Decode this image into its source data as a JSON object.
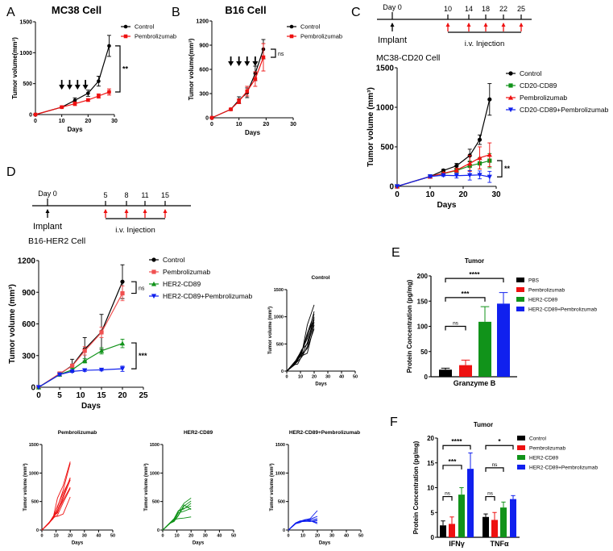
{
  "panels": {
    "A": "A",
    "B": "B",
    "C": "C",
    "D": "D",
    "E": "E",
    "F": "F"
  },
  "timelines": {
    "C": {
      "day0": "Day 0",
      "days": [
        "10",
        "14",
        "18",
        "22",
        "25"
      ],
      "implant": "Implant",
      "injection": "i.v.  Injection",
      "cell": "MC38-CD20 Cell"
    },
    "D": {
      "day0": "Day 0",
      "days": [
        "5",
        "8",
        "11",
        "15"
      ],
      "implant": "Implant",
      "injection": "i.v.  Injection",
      "cell": "B16-HER2  Cell"
    }
  },
  "chart_data": [
    {
      "id": "A",
      "type": "line",
      "title": "MC38 Cell",
      "xlabel": "Days",
      "ylabel": "Tumor volume(mm³)",
      "xlim": [
        0,
        30
      ],
      "ylim": [
        0,
        1500
      ],
      "xticks": [
        "0",
        "10",
        "20",
        "30"
      ],
      "yticks": [
        "0",
        "500",
        "1000",
        "1500"
      ],
      "series": [
        {
          "name": "Control",
          "color": "#000000",
          "marker": "circle",
          "x": [
            0,
            10,
            15,
            20,
            24,
            28
          ],
          "y": [
            0,
            120,
            230,
            345,
            540,
            1110
          ],
          "err": [
            0,
            10,
            40,
            50,
            80,
            170
          ]
        },
        {
          "name": "Pembrolizumab",
          "color": "#ee1111",
          "marker": "square",
          "x": [
            0,
            10,
            15,
            20,
            24,
            28
          ],
          "y": [
            0,
            120,
            175,
            235,
            300,
            365
          ],
          "err": [
            0,
            10,
            30,
            20,
            35,
            50
          ]
        }
      ],
      "treatment_days": [
        10,
        13,
        16,
        19
      ],
      "brackets": [
        {
          "label": "**",
          "from": 1110,
          "to": 365
        }
      ]
    },
    {
      "id": "B",
      "type": "line",
      "title": "B16 Cell",
      "xlabel": "Days",
      "ylabel": "Tumor volume(mm³)",
      "xlim": [
        0,
        30
      ],
      "ylim": [
        0,
        1200
      ],
      "xticks": [
        "0",
        "10",
        "20",
        "30"
      ],
      "yticks": [
        "0",
        "300",
        "600",
        "900",
        "1200"
      ],
      "series": [
        {
          "name": "Control",
          "color": "#000000",
          "marker": "circle",
          "x": [
            0,
            7,
            10,
            13,
            16,
            19
          ],
          "y": [
            0,
            105,
            220,
            310,
            550,
            850
          ],
          "err": [
            0,
            10,
            40,
            60,
            90,
            120
          ]
        },
        {
          "name": "Pembrolizumab",
          "color": "#ee1111",
          "marker": "square",
          "x": [
            0,
            7,
            10,
            13,
            16,
            19
          ],
          "y": [
            0,
            105,
            205,
            330,
            480,
            750
          ],
          "err": [
            0,
            10,
            30,
            60,
            90,
            170
          ]
        }
      ],
      "treatment_days": [
        7,
        10,
        13,
        16
      ],
      "brackets": [
        {
          "label": "ns",
          "from": 850,
          "to": 750
        }
      ]
    },
    {
      "id": "C",
      "type": "line",
      "title": "",
      "xlabel": "Days",
      "ylabel": "Tumor volume (mm³)",
      "xlim": [
        0,
        30
      ],
      "ylim": [
        0,
        1500
      ],
      "xticks": [
        "0",
        "10",
        "20",
        "30"
      ],
      "yticks": [
        "0",
        "500",
        "1000",
        "1500"
      ],
      "series": [
        {
          "name": "Control",
          "color": "#000000",
          "marker": "circle",
          "x": [
            0,
            10,
            14,
            18,
            22,
            25,
            28
          ],
          "y": [
            0,
            125,
            200,
            260,
            390,
            590,
            1100
          ],
          "err": [
            0,
            10,
            15,
            30,
            80,
            60,
            200
          ]
        },
        {
          "name": "CD20-CD89",
          "color": "#11931a",
          "marker": "square",
          "x": [
            0,
            10,
            14,
            18,
            22,
            25,
            28
          ],
          "y": [
            0,
            125,
            160,
            200,
            260,
            290,
            325
          ],
          "err": [
            0,
            10,
            15,
            25,
            60,
            70,
            90
          ]
        },
        {
          "name": "Pembrolizumab",
          "color": "#ee1111",
          "marker": "triangle-up",
          "x": [
            0,
            10,
            14,
            18,
            22,
            25,
            28
          ],
          "y": [
            0,
            125,
            165,
            205,
            290,
            360,
            400
          ],
          "err": [
            0,
            10,
            15,
            25,
            100,
            140,
            150
          ]
        },
        {
          "name": "CD20-CD89+Pembrolizumab",
          "color": "#1020ee",
          "marker": "triangle-down",
          "x": [
            0,
            10,
            14,
            18,
            22,
            25,
            28
          ],
          "y": [
            0,
            125,
            140,
            135,
            140,
            145,
            120
          ],
          "err": [
            0,
            10,
            15,
            30,
            60,
            50,
            70
          ]
        }
      ],
      "brackets": [
        {
          "label": "**",
          "from": 325,
          "to": 120
        }
      ]
    },
    {
      "id": "D",
      "type": "line",
      "title": "",
      "xlabel": "Days",
      "ylabel": "Tumor volume (mm³)",
      "xlim": [
        0,
        25
      ],
      "ylim": [
        0,
        1200
      ],
      "xticks": [
        "0",
        "5",
        "10",
        "15",
        "20",
        "25"
      ],
      "yticks": [
        "0",
        "300",
        "600",
        "900",
        "1200"
      ],
      "series": [
        {
          "name": "Control",
          "color": "#000000",
          "marker": "circle",
          "x": [
            0,
            5,
            8,
            11,
            15,
            20
          ],
          "y": [
            0,
            125,
            205,
            360,
            525,
            1000
          ],
          "err": [
            0,
            10,
            60,
            110,
            165,
            160
          ]
        },
        {
          "name": "Pembrolizumab",
          "color": "#f05050",
          "marker": "square",
          "x": [
            0,
            5,
            8,
            11,
            15,
            20
          ],
          "y": [
            0,
            130,
            200,
            345,
            520,
            890
          ],
          "err": [
            0,
            10,
            20,
            40,
            50,
            70
          ]
        },
        {
          "name": "HER2-CD89",
          "color": "#11931a",
          "marker": "triangle-up",
          "x": [
            0,
            5,
            8,
            11,
            15,
            20
          ],
          "y": [
            0,
            120,
            165,
            250,
            345,
            415
          ],
          "err": [
            0,
            10,
            15,
            20,
            30,
            40
          ]
        },
        {
          "name": "HER2-CD89+Pembrolizumab",
          "color": "#1020ee",
          "marker": "triangle-down",
          "x": [
            0,
            5,
            8,
            11,
            15,
            20
          ],
          "y": [
            0,
            120,
            150,
            160,
            165,
            175
          ],
          "err": [
            0,
            10,
            10,
            10,
            10,
            25
          ]
        }
      ],
      "brackets": [
        {
          "label": "ns",
          "from": 1000,
          "to": 890
        },
        {
          "label": "***",
          "from": 420,
          "to": 175
        }
      ]
    },
    {
      "id": "ctrl",
      "type": "line",
      "title": "Control",
      "xlabel": "Days",
      "ylabel": "Tumor volume (mm³)",
      "xlim": [
        0,
        50
      ],
      "ylim": [
        0,
        1500
      ],
      "xticks": [
        "0",
        "10",
        "20",
        "30",
        "40",
        "50"
      ],
      "yticks": [
        "0",
        "500",
        "1000",
        "1500"
      ],
      "color": "#000000",
      "x": [
        0,
        6,
        8,
        11,
        15,
        20
      ],
      "curves": [
        [
          0,
          180,
          230,
          300,
          520,
          1000
        ],
        [
          0,
          150,
          220,
          330,
          850,
          1220
        ],
        [
          0,
          130,
          200,
          350,
          700,
          1050
        ],
        [
          0,
          120,
          130,
          280,
          330,
          850
        ],
        [
          0,
          160,
          250,
          400,
          500,
          950
        ],
        [
          0,
          140,
          210,
          300,
          420,
          780
        ],
        [
          0,
          170,
          260,
          380,
          600,
          1100
        ],
        [
          0,
          130,
          180,
          260,
          450,
          900
        ],
        [
          0,
          150,
          240,
          360,
          650,
          980
        ]
      ]
    },
    {
      "id": "pembro",
      "type": "line",
      "title": "Pembrolizumab",
      "xlabel": "Days",
      "ylabel": "Tumor volume (mm³)",
      "xlim": [
        0,
        50
      ],
      "ylim": [
        0,
        1500
      ],
      "xticks": [
        "0",
        "10",
        "20",
        "30",
        "40",
        "50"
      ],
      "yticks": [
        "0",
        "500",
        "1000",
        "1500"
      ],
      "color": "#ee1111",
      "x": [
        0,
        5,
        8,
        11,
        15,
        20
      ],
      "curves": [
        [
          0,
          130,
          220,
          560,
          780,
          1200
        ],
        [
          0,
          120,
          230,
          400,
          700,
          1170
        ],
        [
          0,
          125,
          210,
          350,
          600,
          920
        ],
        [
          0,
          120,
          240,
          300,
          560,
          880
        ],
        [
          0,
          130,
          220,
          320,
          520,
          750
        ],
        [
          0,
          115,
          210,
          260,
          480,
          730
        ],
        [
          0,
          120,
          240,
          240,
          280,
          580
        ],
        [
          0,
          125,
          200,
          420,
          650,
          900
        ]
      ]
    },
    {
      "id": "her2",
      "type": "line",
      "title": "HER2-CD89",
      "xlabel": "Days",
      "ylabel": "Tumor volume (mm³)",
      "xlim": [
        0,
        50
      ],
      "ylim": [
        0,
        1500
      ],
      "xticks": [
        "0",
        "10",
        "20",
        "30",
        "40",
        "50"
      ],
      "yticks": [
        "0",
        "500",
        "1000",
        "1500"
      ],
      "color": "#11931a",
      "x": [
        0,
        5,
        8,
        11,
        15,
        20
      ],
      "curves": [
        [
          0,
          120,
          170,
          320,
          470,
          560
        ],
        [
          0,
          115,
          150,
          250,
          420,
          510
        ],
        [
          0,
          125,
          200,
          340,
          380,
          420
        ],
        [
          0,
          120,
          160,
          300,
          330,
          380
        ],
        [
          0,
          110,
          180,
          200,
          210,
          230
        ],
        [
          0,
          120,
          150,
          260,
          440,
          360
        ],
        [
          0,
          125,
          190,
          330,
          370,
          470
        ]
      ]
    },
    {
      "id": "combo",
      "type": "line",
      "title": "HER2-CD89+Pembrolizumab",
      "xlabel": "Days",
      "ylabel": "Tumor volume (mm³)",
      "xlim": [
        0,
        50
      ],
      "ylim": [
        0,
        1500
      ],
      "xticks": [
        "0",
        "10",
        "20",
        "30",
        "40",
        "50"
      ],
      "yticks": [
        "0",
        "500",
        "1000",
        "1500"
      ],
      "color": "#1020ee",
      "x": [
        0,
        5,
        8,
        11,
        15,
        20
      ],
      "curves": [
        [
          0,
          120,
          150,
          180,
          200,
          340
        ],
        [
          0,
          110,
          140,
          160,
          190,
          240
        ],
        [
          0,
          125,
          160,
          170,
          175,
          200
        ],
        [
          0,
          115,
          150,
          160,
          150,
          160
        ],
        [
          0,
          120,
          145,
          150,
          160,
          130
        ],
        [
          0,
          110,
          130,
          170,
          165,
          110
        ],
        [
          0,
          120,
          150,
          155,
          150,
          180
        ]
      ]
    },
    {
      "id": "E",
      "type": "bar",
      "title": "Tumor",
      "ylabel": "Protein Concentration (pg/mg)",
      "ylim": [
        0,
        200
      ],
      "yticks": [
        "0",
        "50",
        "100",
        "150",
        "200"
      ],
      "legend": [
        {
          "name": "PBS",
          "color": "#000000"
        },
        {
          "name": "Pembrolizumab",
          "color": "#ee1111"
        },
        {
          "name": "HER2-CD89",
          "color": "#11931a"
        },
        {
          "name": "HER2-CD89+Pembrolizumab",
          "color": "#1020ee"
        }
      ],
      "groups": [
        {
          "label": "Granzyme B",
          "values": [
            14,
            23,
            109,
            145
          ],
          "err": [
            3,
            10,
            30,
            22
          ],
          "brackets": [
            {
              "from": 0,
              "to": 3,
              "value": 195,
              "label": "****"
            },
            {
              "from": 0,
              "to": 2,
              "value": 157,
              "label": "***"
            },
            {
              "from": 0,
              "to": 1,
              "value": 100,
              "label": "ns"
            }
          ]
        }
      ]
    },
    {
      "id": "F",
      "type": "bar",
      "title": "Tumor",
      "ylabel": "Protein Concentration (pg/mg)",
      "ylim": [
        0,
        20
      ],
      "yticks": [
        "0",
        "5",
        "10",
        "15",
        "20"
      ],
      "legend": [
        {
          "name": "Control",
          "color": "#000000"
        },
        {
          "name": "Pembrolizumab",
          "color": "#ee1111"
        },
        {
          "name": "HER2-CD89",
          "color": "#11931a"
        },
        {
          "name": "HER2-CD89+Pembrolizumab",
          "color": "#1020ee"
        }
      ],
      "groups": [
        {
          "label": "IFNγ",
          "values": [
            2.4,
            2.7,
            8.6,
            13.8
          ],
          "err": [
            0.9,
            1.4,
            1.4,
            3.2
          ],
          "brackets": [
            {
              "from": 0,
              "to": 3,
              "value": 18.5,
              "label": "****"
            },
            {
              "from": 0,
              "to": 2,
              "value": 14.5,
              "label": "***"
            },
            {
              "from": 0,
              "to": 1,
              "value": 8.2,
              "label": "ns"
            }
          ]
        },
        {
          "label": "TNFα",
          "values": [
            4.1,
            3.5,
            6.0,
            7.7
          ],
          "err": [
            0.6,
            1.5,
            1.1,
            0.7
          ],
          "brackets": [
            {
              "from": 0,
              "to": 3,
              "value": 18.5,
              "label": "*"
            },
            {
              "from": 0,
              "to": 2,
              "value": 14,
              "label": "ns"
            },
            {
              "from": 0,
              "to": 1,
              "value": 8.2,
              "label": "ns"
            }
          ]
        }
      ]
    }
  ]
}
